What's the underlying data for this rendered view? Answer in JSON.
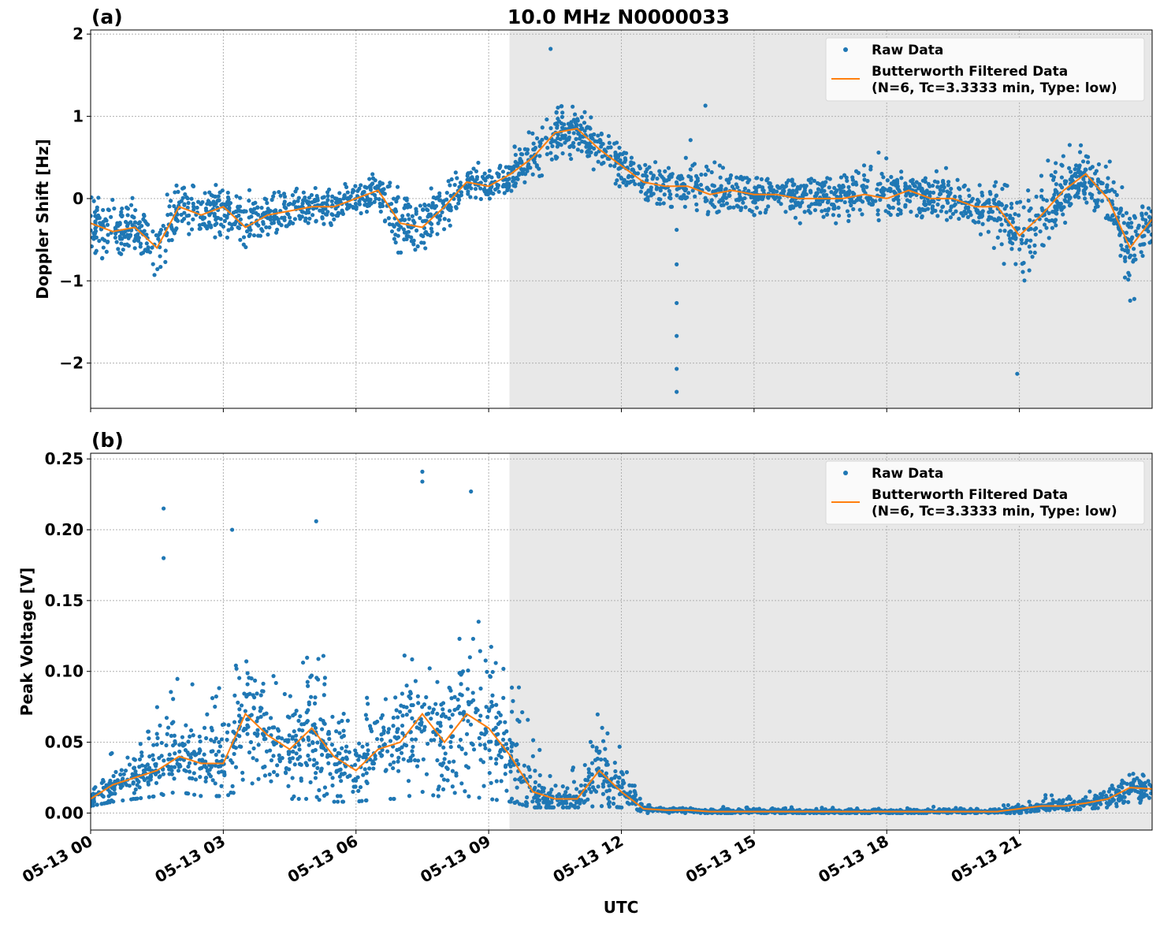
{
  "title": "10.0 MHz N0000033",
  "xlabel": "UTC",
  "x_tick_labels": [
    "05-13 00",
    "05-13 03",
    "05-13 06",
    "05-13 09",
    "05-13 12",
    "05-13 15",
    "05-13 18",
    "05-13 21"
  ],
  "x_ticks_hours": [
    0,
    3,
    6,
    9,
    12,
    15,
    18,
    21
  ],
  "xlim_hours": [
    0,
    24
  ],
  "shaded_span_hours": [
    9.47,
    24
  ],
  "colors": {
    "raw": "#1f77b4",
    "filtered": "#ff7f0e",
    "shade": "#e8e8e8",
    "grid": "#b0b0b0"
  },
  "legend": {
    "raw": "Raw Data",
    "filtered_line1": "Butterworth Filtered Data",
    "filtered_line2": "(N=6, Tc=3.3333 min, Type: low)",
    "placement": "upper right"
  },
  "chart_data": [
    {
      "type": "scatter+line",
      "panel_label": "(a)",
      "ylabel": "Doppler Shift [Hz]",
      "ylim": [
        -2.55,
        2.05
      ],
      "y_ticks": [
        -2,
        -1,
        0,
        1,
        2
      ],
      "y_tick_labels": [
        "−2",
        "−1",
        "0",
        "1",
        "2"
      ],
      "grid": true,
      "x_hours_step": 0.5,
      "filtered": [
        -0.3,
        -0.4,
        -0.35,
        -0.6,
        -0.1,
        -0.2,
        -0.1,
        -0.35,
        -0.2,
        -0.15,
        -0.1,
        -0.1,
        0.0,
        0.1,
        -0.3,
        -0.35,
        -0.1,
        0.2,
        0.15,
        0.3,
        0.5,
        0.8,
        0.85,
        0.6,
        0.4,
        0.2,
        0.15,
        0.15,
        0.05,
        0.1,
        0.05,
        0.05,
        0.0,
        0.0,
        0.0,
        0.05,
        0.0,
        0.1,
        0.0,
        0.0,
        -0.1,
        -0.1,
        -0.45,
        -0.2,
        0.1,
        0.3,
        0.0,
        -0.6,
        -0.25
      ],
      "raw_lower": [
        -0.8,
        -0.9,
        -0.8,
        -1.3,
        -0.6,
        -0.6,
        -0.6,
        -0.8,
        -0.6,
        -0.5,
        -0.4,
        -0.4,
        -0.3,
        -0.2,
        -0.9,
        -0.8,
        -0.5,
        -0.1,
        -0.1,
        0.0,
        0.2,
        0.4,
        0.4,
        0.1,
        0.0,
        0.0,
        -0.1,
        -0.1,
        -0.2,
        -0.1,
        -0.2,
        -0.2,
        -0.3,
        -0.3,
        -0.3,
        -0.2,
        -0.4,
        -0.2,
        -0.4,
        -0.4,
        -0.6,
        -0.8,
        -1.5,
        -0.8,
        -0.3,
        -0.2,
        -0.6,
        -1.5,
        -0.6
      ],
      "raw_upper": [
        0.1,
        0.1,
        0.2,
        0.0,
        0.3,
        0.3,
        0.3,
        0.1,
        0.2,
        0.2,
        0.2,
        0.2,
        0.3,
        0.4,
        0.2,
        0.1,
        0.3,
        0.5,
        0.5,
        0.7,
        1.0,
        1.3,
        1.2,
        1.0,
        0.8,
        0.7,
        0.8,
        0.8,
        0.5,
        0.6,
        0.5,
        0.5,
        0.4,
        0.4,
        0.5,
        0.5,
        0.7,
        0.4,
        0.5,
        0.4,
        0.2,
        0.2,
        0.1,
        0.5,
        0.8,
        0.9,
        0.5,
        0.0,
        0.1
      ],
      "raw_outliers": [
        [
          13.25,
          -0.38
        ],
        [
          13.25,
          -0.8
        ],
        [
          13.25,
          -1.27
        ],
        [
          13.25,
          -1.67
        ],
        [
          13.25,
          -2.07
        ],
        [
          13.25,
          -2.35
        ],
        [
          10.4,
          1.82
        ],
        [
          20.95,
          -2.13
        ],
        [
          13.9,
          1.13
        ]
      ]
    },
    {
      "type": "scatter+line",
      "panel_label": "(b)",
      "ylabel": "Peak Voltage [V]",
      "ylim": [
        -0.012,
        0.254
      ],
      "y_ticks": [
        0,
        0.05,
        0.1,
        0.15,
        0.2,
        0.25
      ],
      "y_tick_labels": [
        "0.00",
        "0.05",
        "0.10",
        "0.15",
        "0.20",
        "0.25"
      ],
      "grid": true,
      "x_hours_step": 0.5,
      "filtered": [
        0.01,
        0.02,
        0.025,
        0.03,
        0.04,
        0.035,
        0.035,
        0.07,
        0.055,
        0.045,
        0.06,
        0.04,
        0.03,
        0.045,
        0.05,
        0.07,
        0.05,
        0.07,
        0.06,
        0.04,
        0.015,
        0.01,
        0.01,
        0.03,
        0.015,
        0.003,
        0.002,
        0.002,
        0.001,
        0.001,
        0.001,
        0.001,
        0.001,
        0.001,
        0.001,
        0.001,
        0.001,
        0.001,
        0.001,
        0.001,
        0.001,
        0.001,
        0.003,
        0.005,
        0.005,
        0.007,
        0.01,
        0.018,
        0.017
      ],
      "raw_lower": [
        0.005,
        0.008,
        0.01,
        0.012,
        0.015,
        0.012,
        0.012,
        0.015,
        0.012,
        0.01,
        0.01,
        0.008,
        0.008,
        0.01,
        0.01,
        0.015,
        0.01,
        0.012,
        0.01,
        0.008,
        0.004,
        0.004,
        0.004,
        0.005,
        0.004,
        0,
        0,
        0,
        0,
        0,
        0,
        0,
        0,
        0,
        0,
        0,
        0,
        0,
        0,
        0,
        0,
        0,
        0,
        0.002,
        0.002,
        0.003,
        0.004,
        0.006,
        0.008
      ],
      "raw_upper": [
        0.05,
        0.07,
        0.06,
        0.1,
        0.12,
        0.09,
        0.13,
        0.14,
        0.12,
        0.13,
        0.16,
        0.12,
        0.1,
        0.12,
        0.14,
        0.17,
        0.12,
        0.17,
        0.16,
        0.14,
        0.1,
        0.03,
        0.04,
        0.09,
        0.05,
        0.01,
        0.005,
        0.005,
        0.005,
        0.005,
        0.005,
        0.005,
        0.005,
        0.005,
        0.005,
        0.005,
        0.005,
        0.005,
        0.005,
        0.005,
        0.005,
        0.005,
        0.01,
        0.015,
        0.015,
        0.02,
        0.025,
        0.04,
        0.03
      ],
      "raw_outliers": [
        [
          1.65,
          0.215
        ],
        [
          3.2,
          0.2
        ],
        [
          5.1,
          0.206
        ],
        [
          7.5,
          0.241
        ],
        [
          8.6,
          0.227
        ],
        [
          1.65,
          0.18
        ],
        [
          7.5,
          0.234
        ]
      ]
    }
  ]
}
